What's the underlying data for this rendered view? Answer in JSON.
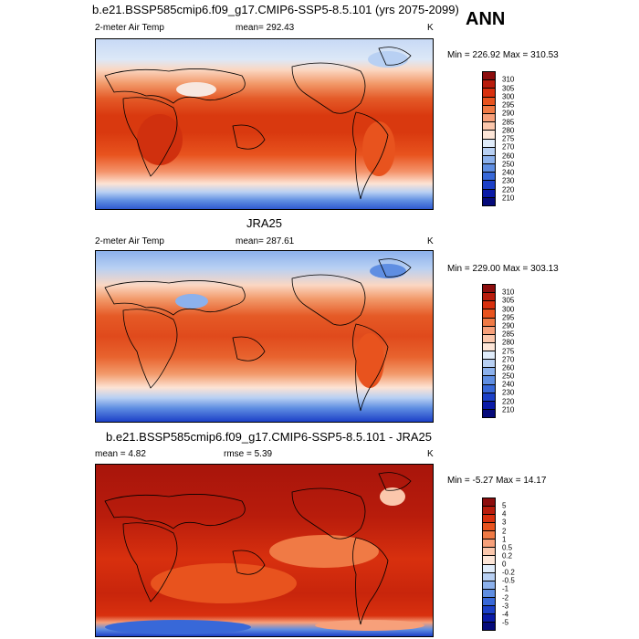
{
  "panels": [
    {
      "title": "b.e21.BSSP585cmip6.f09_g17.CMIP6-SSP5-8.5.101 (yrs 2075-2099)",
      "left_label": "2-meter Air Temp",
      "center_label": "mean= 292.43",
      "right_label": "K",
      "minmax": "Min = 226.92 Max = 310.53",
      "colorbar_labels": [
        "310",
        "305",
        "300",
        "295",
        "290",
        "285",
        "280",
        "275",
        "270",
        "260",
        "250",
        "240",
        "230",
        "220",
        "210"
      ]
    },
    {
      "title": "JRA25",
      "left_label": "2-meter Air Temp",
      "center_label": "mean= 287.61",
      "right_label": "K",
      "minmax": "Min = 229.00 Max = 303.13",
      "colorbar_labels": [
        "310",
        "305",
        "300",
        "295",
        "290",
        "285",
        "280",
        "275",
        "270",
        "260",
        "250",
        "240",
        "230",
        "220",
        "210"
      ]
    },
    {
      "title": "b.e21.BSSP585cmip6.f09_g17.CMIP6-SSP5-8.5.101 - JRA25",
      "left_label": "mean =   4.82",
      "center_label": "rmse =   5.39",
      "right_label": "K",
      "minmax": "Min = -5.27 Max = 14.17",
      "colorbar_labels": [
        "5",
        "4",
        "3",
        "2",
        "1",
        "0.5",
        "0.2",
        "0",
        "-0.2",
        "-0.5",
        "-1",
        "-2",
        "-3",
        "-4",
        "-5"
      ]
    }
  ],
  "season": "ANN",
  "colors": {
    "abs_colorbar": [
      "#8c0d0d",
      "#b81c0c",
      "#d8300e",
      "#e8531e",
      "#f07a45",
      "#f7a07a",
      "#fbc7ac",
      "#fde6d8",
      "#e0ecfa",
      "#b8d0f3",
      "#8cb1ec",
      "#5f8ee2",
      "#3868d8",
      "#1c40c7",
      "#0a1aa6",
      "#050a7a"
    ],
    "diff_colorbar": [
      "#8c0d0d",
      "#b81c0c",
      "#d8300e",
      "#e8531e",
      "#f07a45",
      "#f7a07a",
      "#fbc7ac",
      "#fde6d8",
      "#e0ecfa",
      "#b8d0f3",
      "#8cb1ec",
      "#5f8ee2",
      "#3868d8",
      "#1c40c7",
      "#0a1aa6",
      "#050a7a"
    ]
  }
}
